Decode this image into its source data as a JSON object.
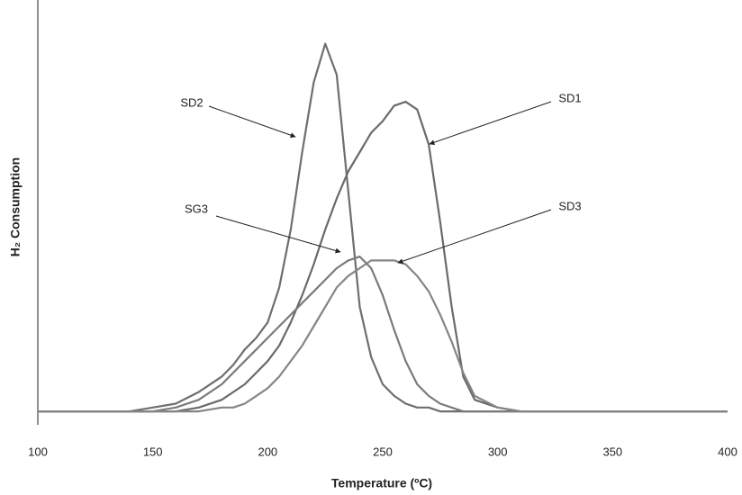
{
  "chart_data": {
    "type": "line",
    "x_label": "Temperature (ºC)",
    "y_label": "H₂ Consumption",
    "x": [
      100,
      110,
      120,
      130,
      140,
      150,
      160,
      170,
      180,
      185,
      190,
      195,
      200,
      205,
      210,
      215,
      220,
      225,
      230,
      235,
      240,
      245,
      250,
      255,
      260,
      265,
      270,
      275,
      280,
      285,
      290,
      300,
      310,
      320,
      340,
      360,
      380,
      400
    ],
    "series": [
      {
        "name": "SD2",
        "color": "#6e6e6e",
        "values": [
          3,
          3,
          3,
          3,
          3,
          4,
          5,
          8,
          12,
          15,
          19,
          22,
          26,
          35,
          50,
          70,
          88,
          98,
          90,
          60,
          30,
          17,
          10,
          7,
          5,
          4,
          4,
          3,
          3,
          3,
          3,
          3,
          3,
          3,
          3,
          3,
          3,
          3
        ]
      },
      {
        "name": "SD1",
        "color": "#6a6a6a",
        "values": [
          3,
          3,
          3,
          3,
          3,
          3,
          3,
          4,
          6,
          8,
          10,
          13,
          16,
          20,
          26,
          33,
          41,
          50,
          58,
          65,
          70,
          75,
          78,
          82,
          83,
          81,
          72,
          52,
          30,
          12,
          6,
          4,
          3,
          3,
          3,
          3,
          3,
          3
        ]
      },
      {
        "name": "SG3",
        "color": "#7a7a7a",
        "values": [
          3,
          3,
          3,
          3,
          3,
          3,
          4,
          6,
          10,
          13,
          16,
          19,
          22,
          25,
          28,
          31,
          34,
          37,
          40,
          42,
          43,
          40,
          33,
          24,
          16,
          10,
          7,
          5,
          4,
          3,
          3,
          3,
          3,
          3,
          3,
          3,
          3,
          3
        ]
      },
      {
        "name": "SD3",
        "color": "#858585",
        "values": [
          3,
          3,
          3,
          3,
          3,
          3,
          3,
          3,
          4,
          4,
          5,
          7,
          9,
          12,
          16,
          20,
          25,
          30,
          35,
          38,
          40,
          42,
          42,
          42,
          41,
          38,
          34,
          28,
          21,
          13,
          7,
          4,
          3,
          3,
          3,
          3,
          3,
          3
        ]
      }
    ],
    "xlim": [
      100,
      400
    ],
    "xticks": [
      100,
      150,
      200,
      250,
      300,
      350,
      400
    ],
    "ylim": [
      0,
      100
    ]
  }
}
